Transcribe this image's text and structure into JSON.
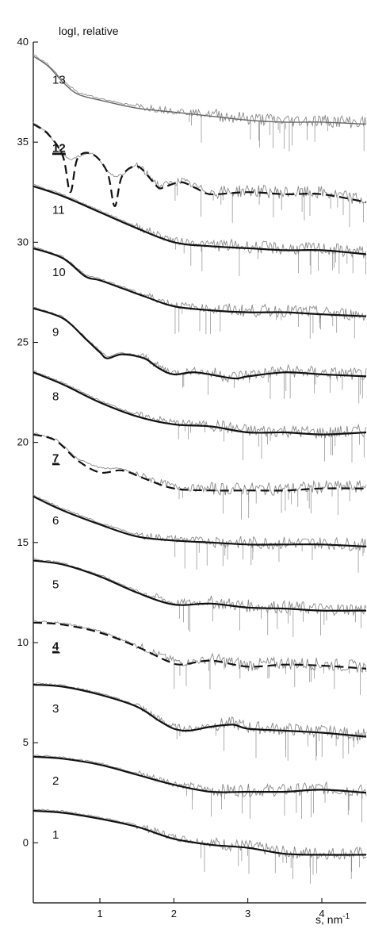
{
  "chart_data": {
    "type": "line",
    "ylabel": "logI, relative",
    "xlabel_base": "s, nm",
    "xlabel_exp": "-1",
    "xlim": [
      0.1,
      4.6
    ],
    "ylim": [
      -3,
      40
    ],
    "xticks": [
      1,
      2,
      3,
      4
    ],
    "yticks": [
      0,
      5,
      10,
      15,
      20,
      25,
      30,
      35,
      40
    ],
    "colors": {
      "fit": "#111111",
      "experimental": "#8a8a8a",
      "axis": "#000000"
    },
    "series": [
      {
        "label": "1",
        "emphasized": false,
        "style": "solid",
        "x": [
          0.1,
          0.5,
          1.0,
          1.5,
          2.0,
          2.5,
          3.0,
          3.5,
          4.0,
          4.6
        ],
        "y": [
          1.6,
          1.5,
          1.2,
          0.8,
          0.2,
          -0.1,
          -0.25,
          -0.55,
          -0.6,
          -0.6
        ]
      },
      {
        "label": "2",
        "emphasized": false,
        "style": "solid",
        "x": [
          0.1,
          0.5,
          1.0,
          1.5,
          2.0,
          2.5,
          3.0,
          3.5,
          4.0,
          4.6
        ],
        "y": [
          4.3,
          4.2,
          3.9,
          3.4,
          2.9,
          2.55,
          2.55,
          2.55,
          2.65,
          2.5
        ]
      },
      {
        "label": "3",
        "emphasized": false,
        "style": "solid",
        "x": [
          0.1,
          0.5,
          1.0,
          1.5,
          1.8,
          2.0,
          2.2,
          2.5,
          2.8,
          3.0,
          3.5,
          4.0,
          4.6
        ],
        "y": [
          7.9,
          7.8,
          7.4,
          6.8,
          6.1,
          5.7,
          5.6,
          5.8,
          5.9,
          5.7,
          5.6,
          5.5,
          5.3
        ]
      },
      {
        "label": "4",
        "emphasized": true,
        "style": "dashed",
        "x": [
          0.1,
          0.5,
          1.0,
          1.5,
          1.9,
          2.1,
          2.5,
          3.0,
          3.5,
          4.0,
          4.6
        ],
        "y": [
          11.0,
          10.9,
          10.5,
          9.8,
          9.1,
          8.9,
          9.1,
          8.8,
          8.9,
          8.85,
          8.7
        ]
      },
      {
        "label": "5",
        "emphasized": false,
        "style": "solid",
        "x": [
          0.1,
          0.5,
          1.0,
          1.5,
          2.0,
          2.5,
          3.0,
          3.5,
          4.0,
          4.6
        ],
        "y": [
          14.1,
          13.9,
          13.3,
          12.5,
          11.9,
          11.95,
          11.75,
          11.7,
          11.6,
          11.6
        ]
      },
      {
        "label": "6",
        "emphasized": false,
        "style": "solid",
        "x": [
          0.1,
          0.5,
          1.0,
          1.5,
          2.0,
          2.5,
          3.0,
          3.5,
          4.0,
          4.6
        ],
        "y": [
          17.3,
          16.6,
          15.9,
          15.3,
          15.1,
          15.0,
          14.9,
          14.9,
          14.9,
          14.8
        ]
      },
      {
        "label": "7",
        "emphasized": true,
        "style": "dashed",
        "x": [
          0.1,
          0.4,
          0.7,
          1.0,
          1.3,
          1.6,
          2.0,
          2.5,
          3.0,
          3.5,
          4.0,
          4.6
        ],
        "y": [
          20.4,
          20.1,
          19.1,
          18.5,
          18.6,
          18.2,
          17.7,
          17.6,
          17.6,
          17.6,
          17.7,
          17.7
        ]
      },
      {
        "label": "8",
        "emphasized": false,
        "style": "solid",
        "x": [
          0.1,
          0.5,
          1.0,
          1.5,
          2.0,
          2.5,
          3.0,
          3.5,
          4.0,
          4.6
        ],
        "y": [
          23.5,
          22.9,
          22.0,
          21.3,
          20.9,
          20.8,
          20.5,
          20.5,
          20.4,
          20.5
        ]
      },
      {
        "label": "9",
        "emphasized": false,
        "style": "solid",
        "x": [
          0.1,
          0.5,
          0.8,
          1.0,
          1.1,
          1.3,
          1.6,
          1.8,
          2.0,
          2.3,
          2.8,
          3.0,
          3.5,
          4.0,
          4.6
        ],
        "y": [
          26.7,
          26.2,
          25.2,
          24.5,
          24.2,
          24.4,
          24.2,
          23.7,
          23.4,
          23.5,
          23.2,
          23.3,
          23.5,
          23.4,
          23.3
        ]
      },
      {
        "label": "10",
        "emphasized": false,
        "style": "solid",
        "x": [
          0.1,
          0.5,
          0.8,
          1.0,
          1.3,
          1.6,
          2.0,
          2.5,
          3.0,
          3.5,
          4.0,
          4.6
        ],
        "y": [
          29.7,
          29.2,
          28.3,
          28.1,
          27.7,
          27.3,
          26.8,
          26.6,
          26.5,
          26.5,
          26.4,
          26.3
        ]
      },
      {
        "label": "11",
        "emphasized": false,
        "style": "solid",
        "x": [
          0.1,
          0.5,
          1.0,
          1.5,
          2.0,
          2.5,
          3.0,
          3.5,
          4.0,
          4.6
        ],
        "y": [
          32.8,
          32.3,
          31.5,
          30.7,
          30.0,
          29.8,
          29.7,
          29.6,
          29.6,
          29.4
        ]
      },
      {
        "label": "12",
        "emphasized": true,
        "style": "dashed",
        "x": [
          0.1,
          0.3,
          0.5,
          0.6,
          0.7,
          0.9,
          1.1,
          1.2,
          1.3,
          1.5,
          1.7,
          1.8,
          1.9,
          2.1,
          2.3,
          2.5,
          3.0,
          3.5,
          4.0,
          4.6
        ],
        "y": [
          35.9,
          35.4,
          34.3,
          32.5,
          34.2,
          34.4,
          33.5,
          31.8,
          33.3,
          33.8,
          33.1,
          32.7,
          32.8,
          33.0,
          32.7,
          32.4,
          32.5,
          32.4,
          32.4,
          32.0
        ]
      },
      {
        "label": "13",
        "emphasized": false,
        "style": "experimental-only",
        "x": [
          0.1,
          0.3,
          0.5,
          0.7,
          1.0,
          1.5,
          2.0,
          2.5,
          3.0,
          3.5,
          4.0,
          4.6
        ],
        "y": [
          39.3,
          38.8,
          38.0,
          37.4,
          37.1,
          36.7,
          36.5,
          36.3,
          36.1,
          36.0,
          36.0,
          35.9
        ]
      }
    ]
  }
}
